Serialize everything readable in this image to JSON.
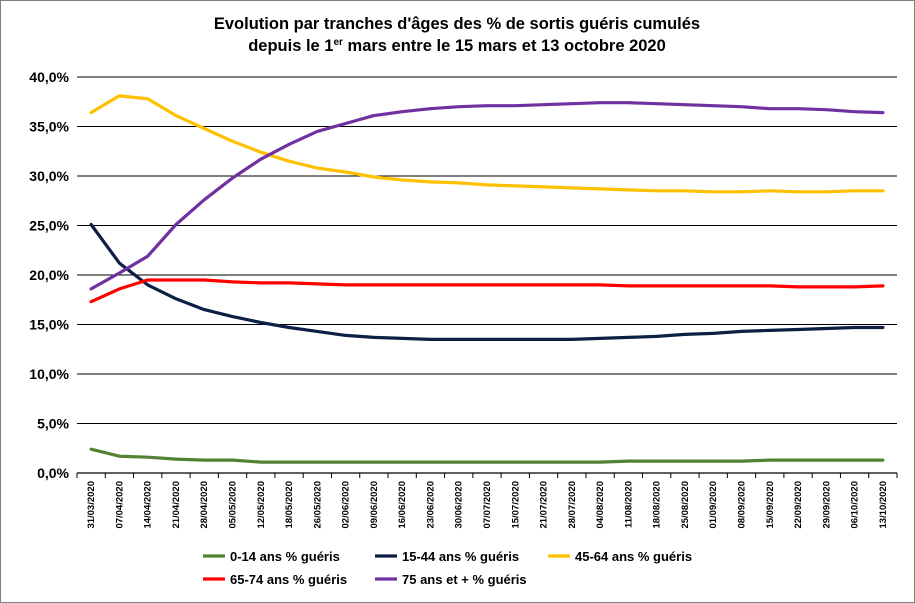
{
  "chart_data": {
    "type": "line",
    "title": {
      "line1": "Evolution par tranches d'âges des % de sortis guéris cumulés",
      "line2_before": "depuis le 1",
      "line2_sup": "er",
      "line2_after": " mars entre le 15 mars et 13 octobre 2020"
    },
    "ylim": [
      0,
      40
    ],
    "y_ticks": [
      "0,0%",
      "5,0%",
      "10,0%",
      "15,0%",
      "20,0%",
      "25,0%",
      "30,0%",
      "35,0%",
      "40,0%"
    ],
    "grid": "horizontal",
    "legend_position": "bottom",
    "categories": [
      "31/03/2020",
      "07/04/2020",
      "14/04/2020",
      "21/04/2020",
      "28/04/2020",
      "05/05/2020",
      "12/05/2020",
      "18/05/2020",
      "26/05/2020",
      "02/06/2020",
      "09/06/2020",
      "16/06/2020",
      "23/06/2020",
      "30/06/2020",
      "07/07/2020",
      "15/07/2020",
      "21/07/2020",
      "28/07/2020",
      "04/08/2020",
      "11/08/2020",
      "18/08/2020",
      "25/08/2020",
      "01/09/2020",
      "08/09/2020",
      "15/09/2020",
      "22/09/2020",
      "29/09/2020",
      "06/10/2020",
      "13/10/2020"
    ],
    "series": [
      {
        "name": "0-14 ans % guéris",
        "color": "#548235",
        "values": [
          2.4,
          1.7,
          1.6,
          1.4,
          1.3,
          1.3,
          1.1,
          1.1,
          1.1,
          1.1,
          1.1,
          1.1,
          1.1,
          1.1,
          1.1,
          1.1,
          1.1,
          1.1,
          1.1,
          1.2,
          1.2,
          1.2,
          1.2,
          1.2,
          1.3,
          1.3,
          1.3,
          1.3,
          1.3
        ]
      },
      {
        "name": "15-44 ans % guéris",
        "color": "#0d1f45",
        "values": [
          25.1,
          21.2,
          19.0,
          17.6,
          16.5,
          15.8,
          15.2,
          14.7,
          14.3,
          13.9,
          13.7,
          13.6,
          13.5,
          13.5,
          13.5,
          13.5,
          13.5,
          13.5,
          13.6,
          13.7,
          13.8,
          14.0,
          14.1,
          14.3,
          14.4,
          14.5,
          14.6,
          14.7,
          14.7
        ]
      },
      {
        "name": "45-64 ans % guéris",
        "color": "#ffc000",
        "values": [
          36.4,
          38.1,
          37.8,
          36.1,
          34.8,
          33.5,
          32.4,
          31.5,
          30.8,
          30.4,
          29.9,
          29.6,
          29.4,
          29.3,
          29.1,
          29.0,
          28.9,
          28.8,
          28.7,
          28.6,
          28.5,
          28.5,
          28.4,
          28.4,
          28.5,
          28.4,
          28.4,
          28.5,
          28.5
        ]
      },
      {
        "name": "65-74 ans % guéris",
        "color": "#ff0000",
        "values": [
          17.3,
          18.6,
          19.5,
          19.5,
          19.5,
          19.3,
          19.2,
          19.2,
          19.1,
          19.0,
          19.0,
          19.0,
          19.0,
          19.0,
          19.0,
          19.0,
          19.0,
          19.0,
          19.0,
          18.9,
          18.9,
          18.9,
          18.9,
          18.9,
          18.9,
          18.8,
          18.8,
          18.8,
          18.9
        ]
      },
      {
        "name": "75 ans et + % guéris",
        "color": "#7030a0",
        "values": [
          18.6,
          20.2,
          21.9,
          25.1,
          27.6,
          29.8,
          31.7,
          33.2,
          34.5,
          35.3,
          36.1,
          36.5,
          36.8,
          37.0,
          37.1,
          37.1,
          37.2,
          37.3,
          37.4,
          37.4,
          37.3,
          37.2,
          37.1,
          37.0,
          36.8,
          36.8,
          36.7,
          36.5,
          36.4
        ]
      }
    ]
  }
}
